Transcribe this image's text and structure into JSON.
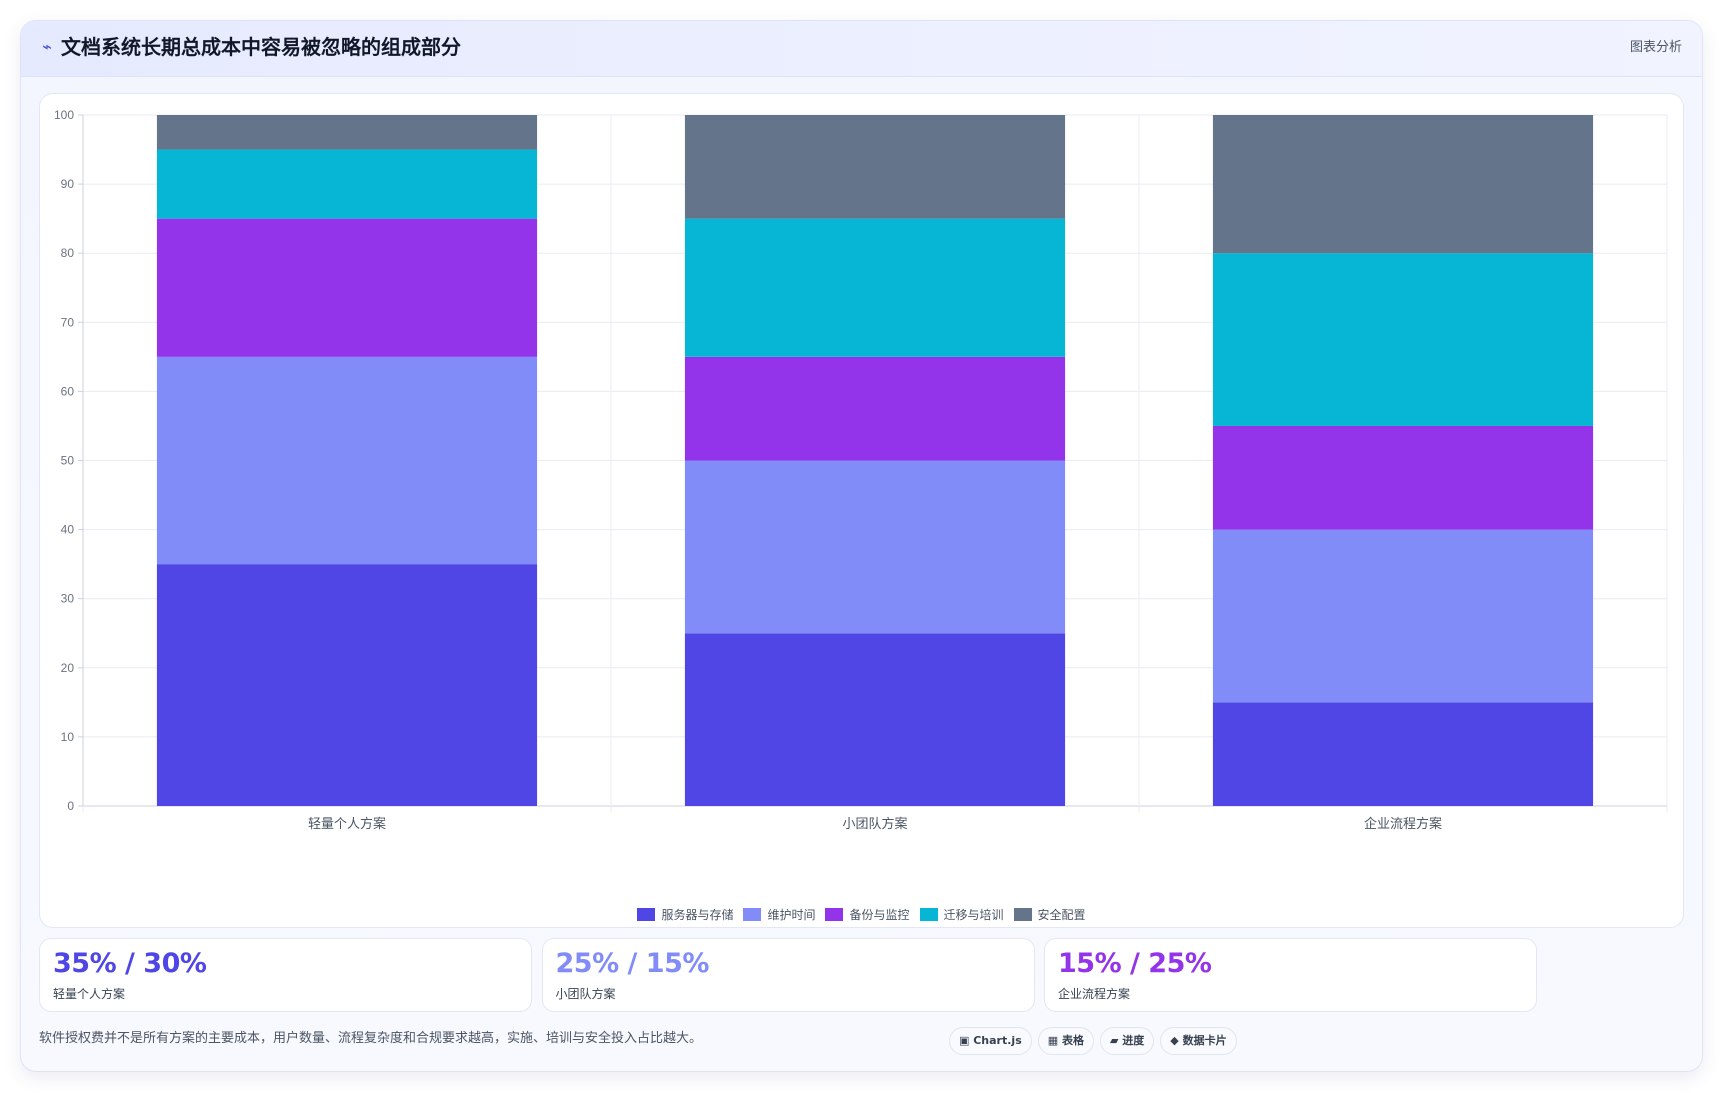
{
  "header": {
    "icon": "chart-bolt-icon",
    "title": "文档系统长期总成本中容易被忽略的组成部分",
    "tag": "图表分析"
  },
  "chart_data": {
    "type": "bar",
    "stacked": true,
    "title": "",
    "xlabel": "",
    "ylabel": "",
    "ylim": [
      0,
      100
    ],
    "yticks": [
      0,
      10,
      20,
      30,
      40,
      50,
      60,
      70,
      80,
      90,
      100
    ],
    "grid": true,
    "legend_position": "bottom",
    "categories": [
      "轻量个人方案",
      "小团队方案",
      "企业流程方案"
    ],
    "series": [
      {
        "name": "服务器与存储",
        "color": "#4f46e5",
        "values": [
          35,
          25,
          15
        ]
      },
      {
        "name": "维护时间",
        "color": "#818cf8",
        "values": [
          30,
          25,
          25
        ]
      },
      {
        "name": "备份与监控",
        "color": "#9333ea",
        "values": [
          20,
          15,
          15
        ]
      },
      {
        "name": "迁移与培训",
        "color": "#06b6d4",
        "values": [
          10,
          20,
          25
        ]
      },
      {
        "name": "安全配置",
        "color": "#64748b",
        "values": [
          5,
          15,
          20
        ]
      }
    ]
  },
  "stats": [
    {
      "value": "35% / 30%",
      "label": "轻量个人方案",
      "color": "#4f46e5"
    },
    {
      "value": "25% / 15%",
      "label": "小团队方案",
      "color": "#818cf8"
    },
    {
      "value": "15% / 25%",
      "label": "企业流程方案",
      "color": "#9333ea"
    }
  ],
  "footnote": "软件授权费并不是所有方案的主要成本，用户数量、流程复杂度和合规要求越高，实施、培训与安全投入占比越大。",
  "badges": [
    {
      "icon": "chart-icon",
      "glyph": "▣",
      "label": "Chart.js"
    },
    {
      "icon": "table-icon",
      "glyph": "▦",
      "label": "表格"
    },
    {
      "icon": "progress-icon",
      "glyph": "▰",
      "label": "进度"
    },
    {
      "icon": "card-icon",
      "glyph": "◆",
      "label": "数据卡片"
    }
  ]
}
